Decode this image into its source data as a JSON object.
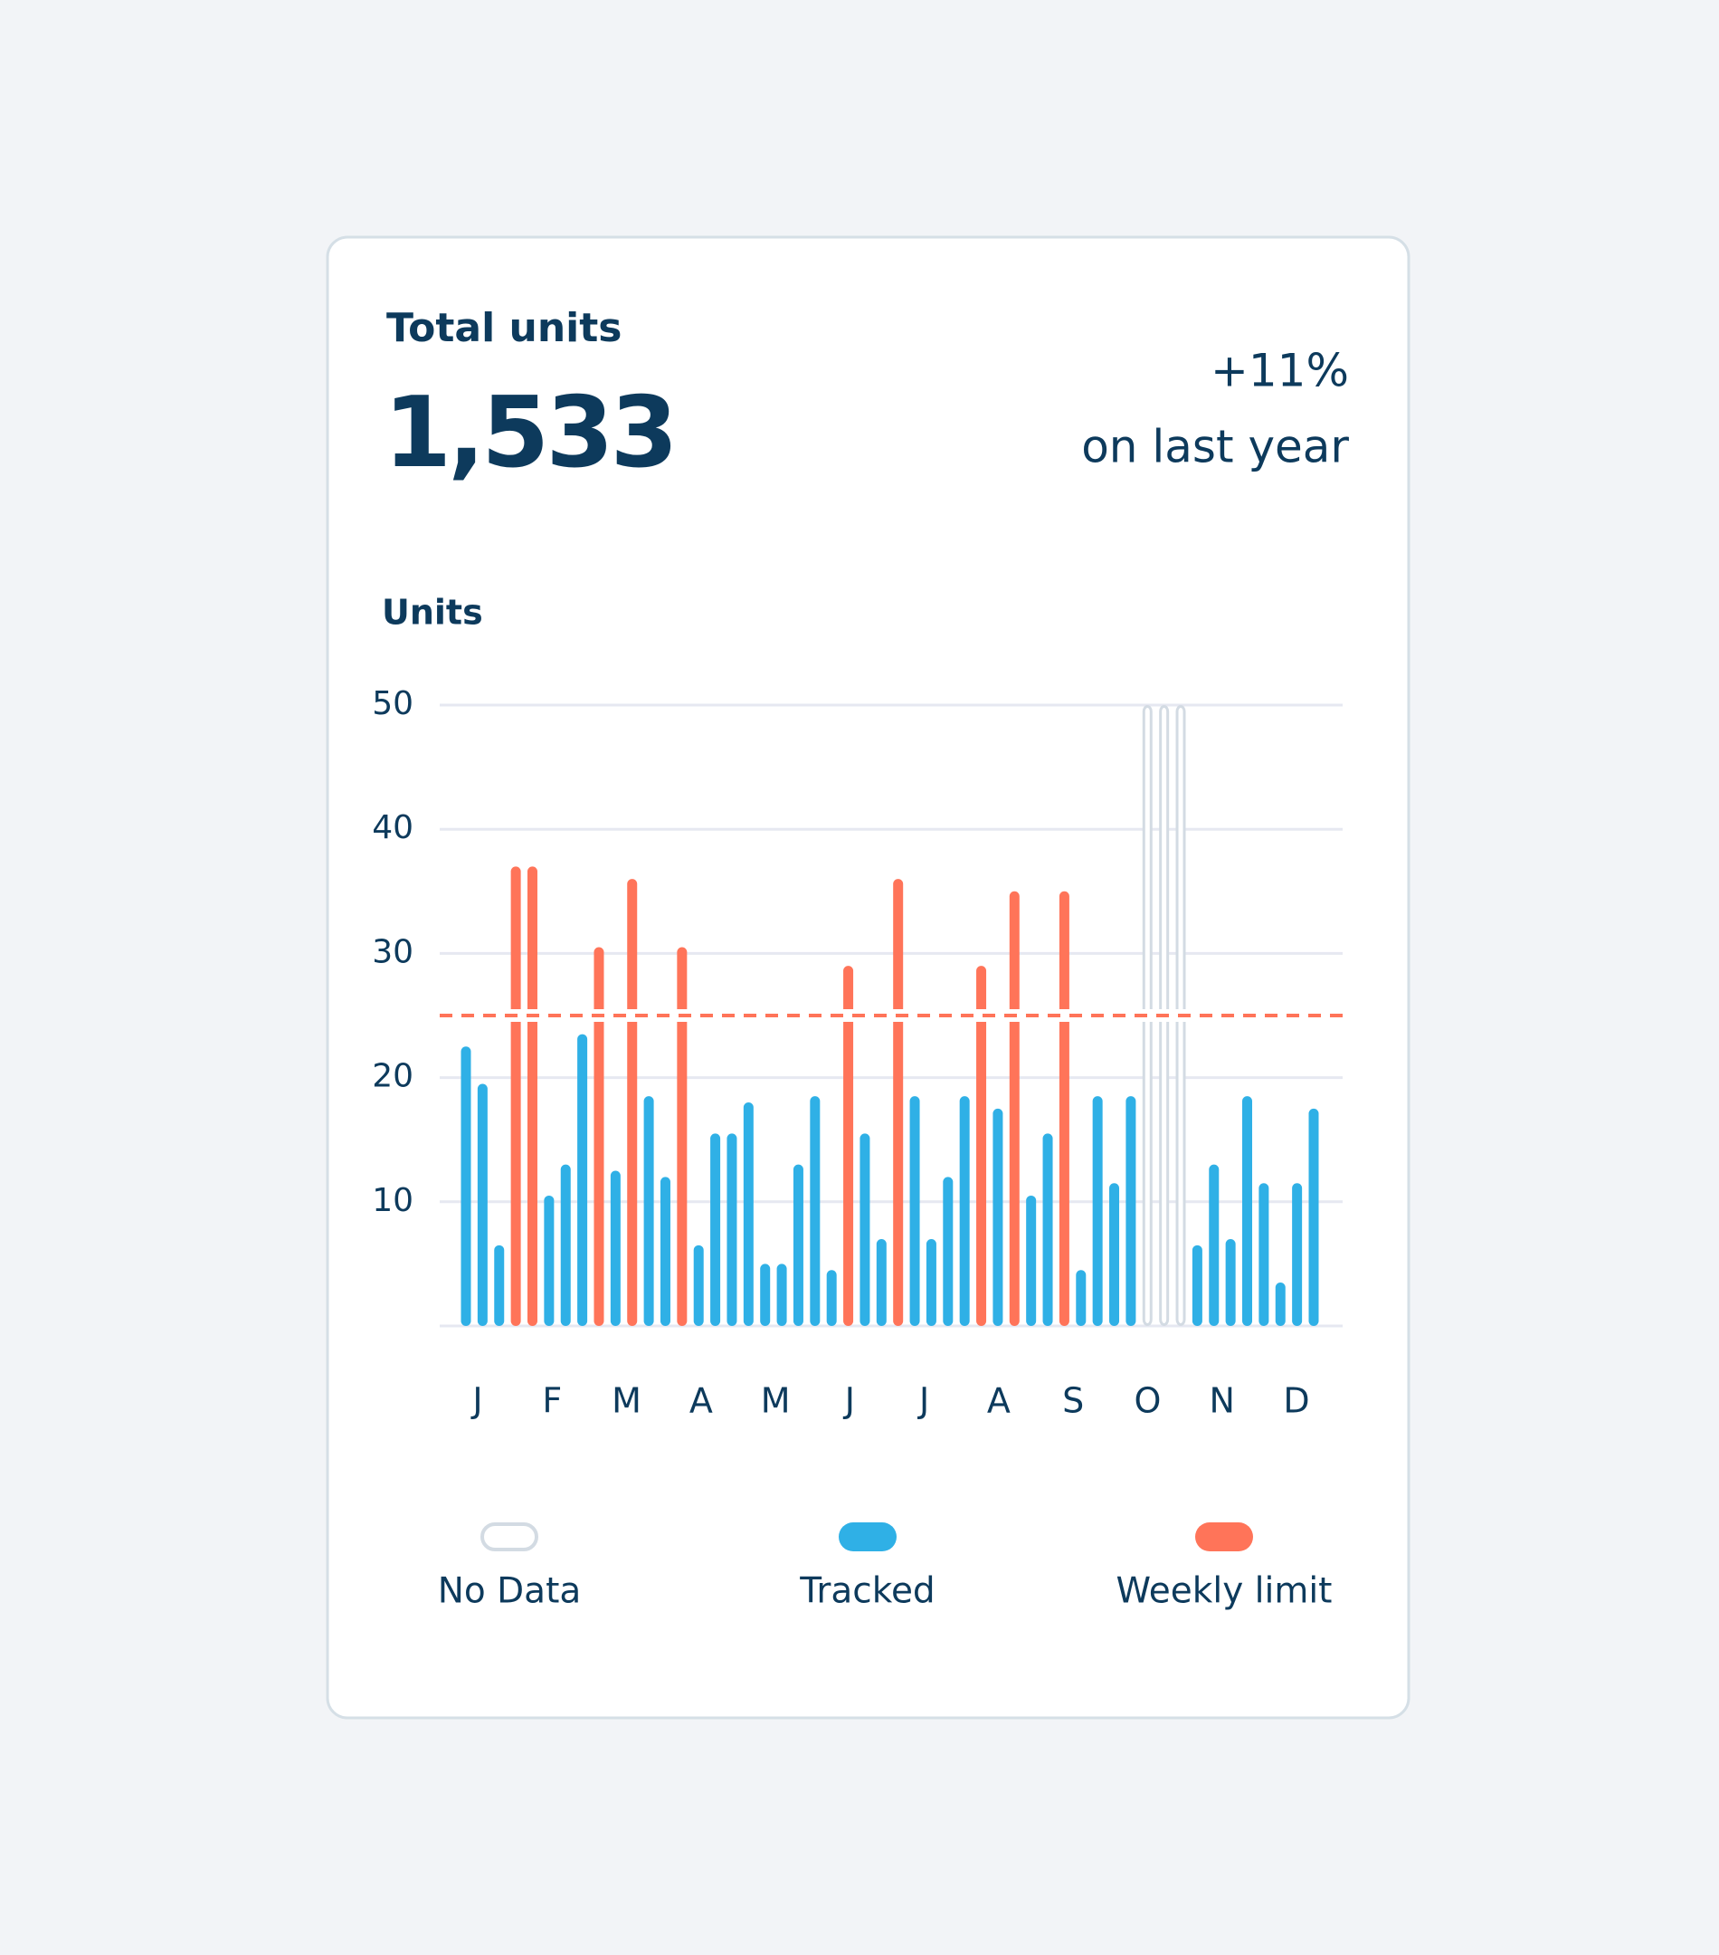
{
  "header": {
    "title": "Total units",
    "value": "1,533",
    "change": "+11%",
    "change_note": "on last year"
  },
  "chart_data": {
    "type": "bar",
    "y_label": "Units",
    "months": [
      "J",
      "F",
      "M",
      "A",
      "M",
      "J",
      "J",
      "A",
      "S",
      "O",
      "N",
      "D"
    ],
    "ylim": [
      0,
      50
    ],
    "yticks": [
      10,
      20,
      30,
      40,
      50
    ],
    "grid": true,
    "limit_line": {
      "value": 25,
      "color": "#ff7459",
      "dashed": true
    },
    "series": [
      {
        "name": "No Data",
        "color": "#d3dbe3",
        "style": "outline",
        "values": [
          null,
          null,
          null,
          null,
          null,
          null,
          null,
          null,
          null,
          null,
          null,
          null,
          null,
          null,
          null,
          null,
          null,
          null,
          null,
          null,
          null,
          null,
          null,
          null,
          null,
          null,
          null,
          null,
          null,
          null,
          null,
          null,
          null,
          null,
          null,
          null,
          null,
          null,
          null,
          null,
          null,
          50,
          50,
          50,
          null,
          null,
          null,
          null,
          null,
          null,
          null,
          null
        ]
      },
      {
        "name": "Tracked",
        "color": "#2fb0e6",
        "values": [
          22.5,
          19.5,
          6.5,
          null,
          null,
          10.5,
          13,
          23.5,
          null,
          12.5,
          null,
          18.5,
          12,
          null,
          6.5,
          15.5,
          15.5,
          18,
          5,
          5,
          13,
          18.5,
          4.5,
          null,
          15.5,
          7,
          null,
          18.5,
          7,
          12,
          18.5,
          null,
          17.5,
          null,
          10.5,
          15.5,
          null,
          4.5,
          18.5,
          11.5,
          18.5,
          null,
          null,
          null,
          6.5,
          13,
          7,
          18.5,
          11.5,
          3.5,
          11.5,
          17.5
        ]
      },
      {
        "name": "Weekly limit",
        "color": "#ff7459",
        "values": [
          null,
          null,
          null,
          37,
          37,
          null,
          null,
          null,
          30.5,
          null,
          36,
          null,
          null,
          30.5,
          null,
          null,
          null,
          null,
          null,
          null,
          null,
          null,
          null,
          29,
          null,
          null,
          36,
          null,
          null,
          null,
          null,
          29,
          null,
          35,
          null,
          null,
          35,
          null,
          null,
          null,
          null,
          null,
          null,
          null,
          null,
          null,
          null,
          null,
          null,
          null,
          null,
          null
        ]
      }
    ]
  }
}
